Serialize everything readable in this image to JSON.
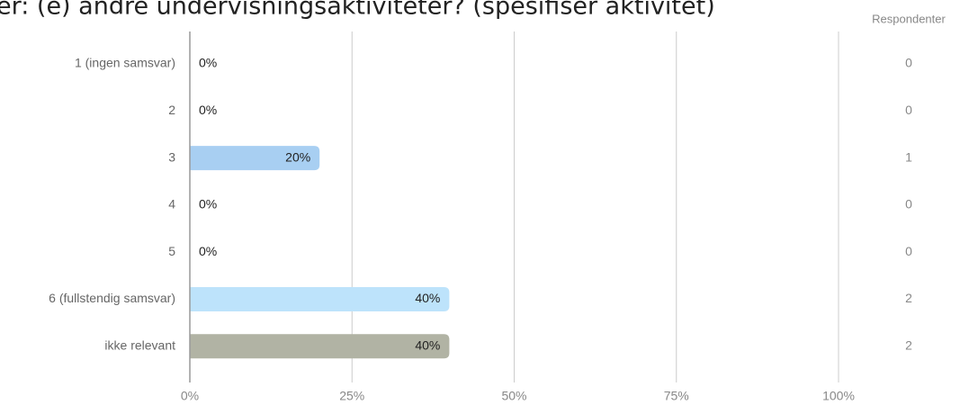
{
  "chart_data": {
    "type": "bar",
    "orientation": "horizontal",
    "title": "er:   (e) andre undervisningsaktiviteter? (spesifiser aktivitet)",
    "categories": [
      "1 (ingen samsvar)",
      "2",
      "3",
      "4",
      "5",
      "6 (fullstendig samsvar)",
      "ikke relevant"
    ],
    "values": [
      0,
      0,
      20,
      0,
      0,
      40,
      40
    ],
    "value_labels": [
      "0%",
      "0%",
      "20%",
      "0%",
      "0%",
      "40%",
      "40%"
    ],
    "colors": [
      "#a8cff2",
      "#a8cff2",
      "#a8cff2",
      "#bde3fb",
      "#bde3fb",
      "#bde3fb",
      "#b1b3a4"
    ],
    "count_header": "Respondenter",
    "counts": [
      0,
      0,
      1,
      0,
      0,
      2,
      2
    ],
    "xlim": [
      0,
      100
    ],
    "xticks": [
      {
        "value": 0,
        "label": "0%"
      },
      {
        "value": 25,
        "label": "25%"
      },
      {
        "value": 50,
        "label": "50%"
      },
      {
        "value": 75,
        "label": "75%"
      },
      {
        "value": 100,
        "label": "100%"
      }
    ],
    "grid": true
  }
}
